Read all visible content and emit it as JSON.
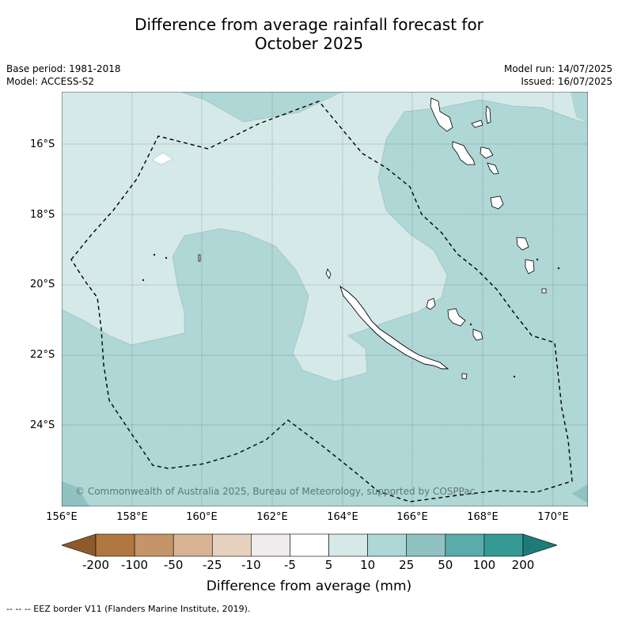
{
  "title": {
    "line1": "Difference from average rainfall forecast for",
    "line2": "October 2025"
  },
  "meta_left": {
    "base_period": "Base period: 1981-2018",
    "model": "Model: ACCESS-S2"
  },
  "meta_right": {
    "model_run": "Model run: 14/07/2025",
    "issued": "Issued: 16/07/2025"
  },
  "map": {
    "lat_labels": [
      "16°S",
      "18°S",
      "20°S",
      "22°S",
      "24°S"
    ],
    "lon_labels": [
      "156°E",
      "158°E",
      "160°E",
      "162°E",
      "164°E",
      "166°E",
      "168°E",
      "170°E"
    ],
    "copyright": "© Commonwealth of Australia 2025, Bureau of Meteorology, supported by COSPPac",
    "colors": {
      "land": "#ffffff",
      "light_wet": "#d5e9e8",
      "mid_wet": "#aed7d6",
      "strong_wet": "#8fc2c1",
      "eez_border": "#000000"
    }
  },
  "colorbar": {
    "ticks": [
      "-200",
      "-100",
      "-50",
      "-25",
      "-10",
      "-5",
      "5",
      "10",
      "25",
      "50",
      "100",
      "200"
    ],
    "colors": [
      "#8f5a2b",
      "#b07840",
      "#c59468",
      "#d7b394",
      "#e6d1bf",
      "#efeceb",
      "#ffffff",
      "#d5e9e8",
      "#aed7d6",
      "#8fc2c1",
      "#5aabaa",
      "#359a96",
      "#1f7b78"
    ],
    "label": "Difference from average (mm)"
  },
  "footer": "--  --  -- EEZ border V11 (Flanders Marine Institute, 2019)."
}
